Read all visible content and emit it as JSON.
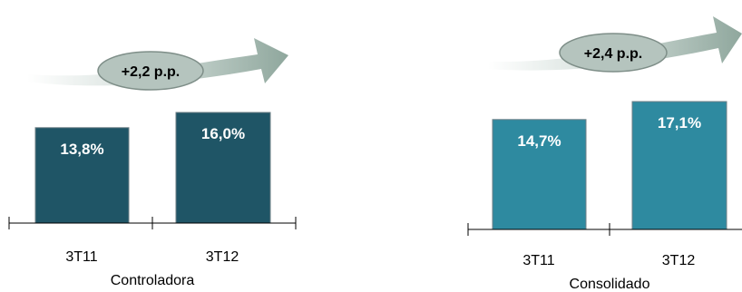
{
  "chart_data": [
    {
      "type": "bar",
      "title": "",
      "group_label": "Controladora",
      "categories": [
        "3T11",
        "3T12"
      ],
      "values": [
        13.8,
        16.0
      ],
      "value_labels": [
        "13,8%",
        "16,0%"
      ],
      "delta_label": "+2,2 p.p.",
      "bar_color": "#1f5566",
      "ylim": [
        0,
        18
      ],
      "grid": false
    },
    {
      "type": "bar",
      "title": "",
      "group_label": "Consolidado",
      "categories": [
        "3T11",
        "3T12"
      ],
      "values": [
        14.7,
        17.1
      ],
      "value_labels": [
        "14,7%",
        "17,1%"
      ],
      "delta_label": "+2,4 p.p.",
      "bar_color": "#2e8aa0",
      "ylim": [
        0,
        18
      ],
      "grid": false
    }
  ],
  "colors": {
    "arrow_light": "#ffffff",
    "arrow_dark": "#93aaa1",
    "ellipse_fill": "#b5c4be",
    "ellipse_stroke": "#7e8e88"
  }
}
